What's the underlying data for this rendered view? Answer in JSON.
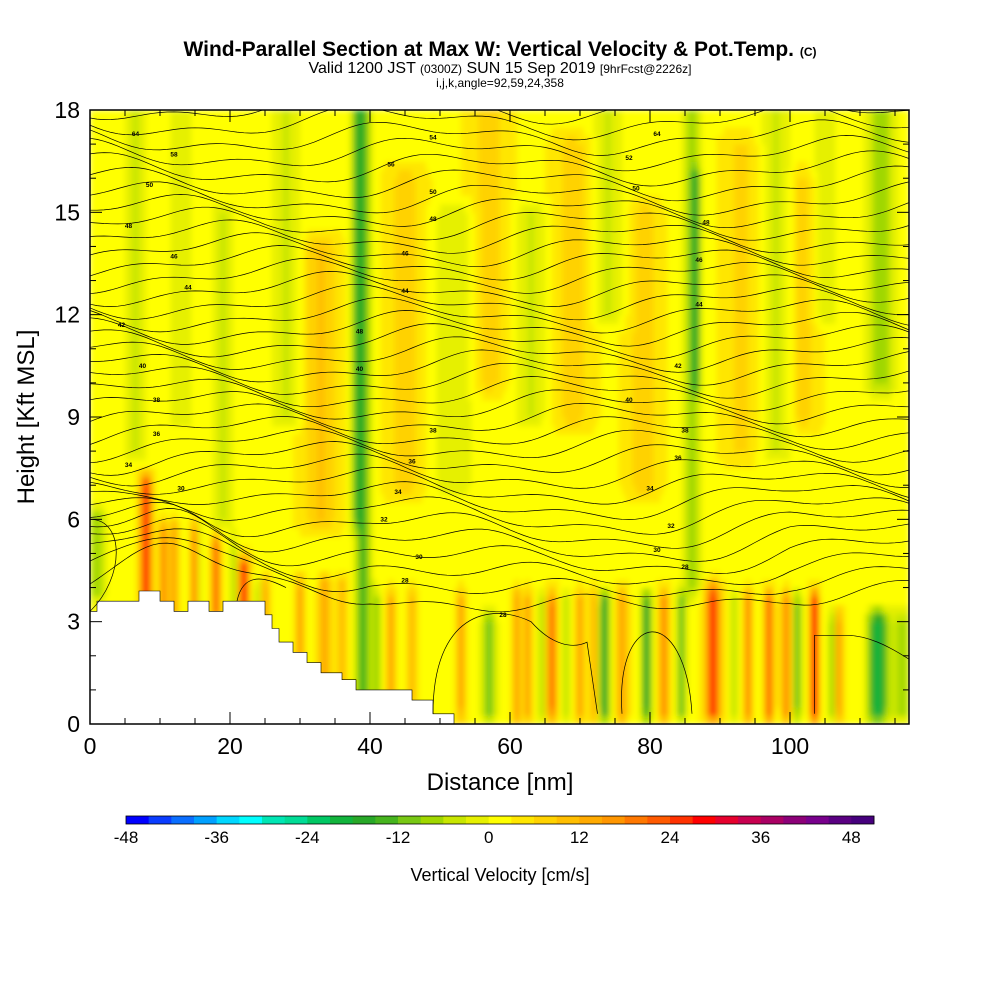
{
  "title": {
    "main": "Wind-Parallel Section at Max W: Vertical Velocity & Pot.Temp.",
    "main_suffix": "(C)",
    "valid_prefix": "Valid 1200 JST",
    "valid_utc": "(0300Z)",
    "valid_date": "SUN 15 Sep 2019",
    "forecast": "[9hrFcst@2226z]",
    "params": "i,j,k,angle=92,59,24,358"
  },
  "chart_data": {
    "type": "heatmap",
    "xlabel": "Distance [nm]",
    "ylabel": "Height [Kft MSL]",
    "xlim": [
      0,
      117
    ],
    "ylim": [
      0,
      18
    ],
    "x_ticks": [
      "0",
      "20",
      "40",
      "60",
      "80",
      "100"
    ],
    "x_tick_values": [
      0,
      20,
      40,
      60,
      80,
      100
    ],
    "y_ticks": [
      "0",
      "3",
      "6",
      "9",
      "12",
      "15",
      "18"
    ],
    "y_tick_values": [
      0,
      3,
      6,
      9,
      12,
      15,
      18
    ],
    "colorbar": {
      "label": "Vertical Velocity [cm/s]",
      "tick_labels": [
        "-48",
        "-36",
        "-24",
        "-12",
        "0",
        "12",
        "24",
        "36",
        "48"
      ],
      "min": -48,
      "max": 51,
      "step": 3,
      "colors": [
        "#0000ff",
        "#0a3cff",
        "#0a6eff",
        "#00a0ff",
        "#00d7ff",
        "#00ffff",
        "#00e6b4",
        "#00dc96",
        "#00c864",
        "#12b43c",
        "#28a828",
        "#46b41e",
        "#78c814",
        "#a0d700",
        "#c8e600",
        "#e6f000",
        "#ffff00",
        "#ffe600",
        "#ffd200",
        "#ffbe00",
        "#ffaa00",
        "#ff9600",
        "#ff7800",
        "#ff5a00",
        "#ff3200",
        "#ff0000",
        "#e6002d",
        "#c80050",
        "#aa0064",
        "#8c0078",
        "#78008c",
        "#5a0082",
        "#46007d"
      ]
    },
    "theta_contours": {
      "interval": 2,
      "labels": [
        {
          "x": 6.5,
          "y": 17.3,
          "v": "64"
        },
        {
          "x": 12,
          "y": 16.7,
          "v": "58"
        },
        {
          "x": 8.5,
          "y": 15.8,
          "v": "50"
        },
        {
          "x": 5.5,
          "y": 14.6,
          "v": "48"
        },
        {
          "x": 12,
          "y": 13.7,
          "v": "46"
        },
        {
          "x": 14,
          "y": 12.8,
          "v": "44"
        },
        {
          "x": 4.5,
          "y": 11.7,
          "v": "42"
        },
        {
          "x": 7.5,
          "y": 10.5,
          "v": "40"
        },
        {
          "x": 9.5,
          "y": 9.5,
          "v": "38"
        },
        {
          "x": 9.5,
          "y": 8.5,
          "v": "36"
        },
        {
          "x": 5.5,
          "y": 7.6,
          "v": "34"
        },
        {
          "x": 13,
          "y": 6.9,
          "v": "30"
        },
        {
          "x": 49,
          "y": 17.2,
          "v": "54"
        },
        {
          "x": 43,
          "y": 16.4,
          "v": "56"
        },
        {
          "x": 49,
          "y": 15.6,
          "v": "50"
        },
        {
          "x": 49,
          "y": 14.8,
          "v": "48"
        },
        {
          "x": 45,
          "y": 13.8,
          "v": "46"
        },
        {
          "x": 45,
          "y": 12.7,
          "v": "44"
        },
        {
          "x": 38.5,
          "y": 11.5,
          "v": "48"
        },
        {
          "x": 38.5,
          "y": 10.4,
          "v": "40"
        },
        {
          "x": 49,
          "y": 8.6,
          "v": "38"
        },
        {
          "x": 46,
          "y": 7.7,
          "v": "36"
        },
        {
          "x": 44,
          "y": 6.8,
          "v": "34"
        },
        {
          "x": 42,
          "y": 6.0,
          "v": "32"
        },
        {
          "x": 47,
          "y": 4.9,
          "v": "30"
        },
        {
          "x": 45,
          "y": 4.2,
          "v": "28"
        },
        {
          "x": 81,
          "y": 17.3,
          "v": "64"
        },
        {
          "x": 77,
          "y": 16.6,
          "v": "52"
        },
        {
          "x": 78,
          "y": 15.7,
          "v": "50"
        },
        {
          "x": 88,
          "y": 14.7,
          "v": "48"
        },
        {
          "x": 87,
          "y": 13.6,
          "v": "46"
        },
        {
          "x": 87,
          "y": 12.3,
          "v": "44"
        },
        {
          "x": 84,
          "y": 10.5,
          "v": "42"
        },
        {
          "x": 77,
          "y": 9.5,
          "v": "40"
        },
        {
          "x": 85,
          "y": 8.6,
          "v": "38"
        },
        {
          "x": 84,
          "y": 7.8,
          "v": "36"
        },
        {
          "x": 80,
          "y": 6.9,
          "v": "34"
        },
        {
          "x": 83,
          "y": 5.8,
          "v": "32"
        },
        {
          "x": 81,
          "y": 5.1,
          "v": "30"
        },
        {
          "x": 85,
          "y": 4.6,
          "v": "28"
        },
        {
          "x": 59,
          "y": 3.2,
          "v": "28"
        }
      ]
    }
  }
}
